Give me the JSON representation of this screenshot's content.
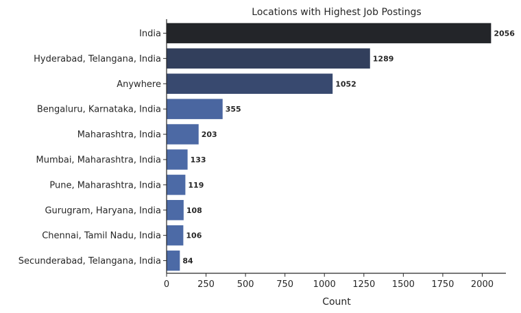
{
  "chart_data": {
    "type": "bar",
    "orientation": "horizontal",
    "title": "Locations with Highest Job Postings",
    "xlabel": "Count",
    "ylabel": "",
    "categories": [
      "India",
      "Hyderabad, Telangana, India",
      "Anywhere",
      "Bengaluru, Karnataka, India",
      "Maharashtra, India",
      "Mumbai, Maharashtra, India",
      "Pune, Maharashtra, India",
      "Gurugram, Haryana, India",
      "Chennai, Tamil Nadu, India",
      "Secunderabad, Telangana, India"
    ],
    "values": [
      2056,
      1289,
      1052,
      355,
      203,
      133,
      119,
      108,
      106,
      84
    ],
    "bar_colors": [
      "#232529",
      "#323f5c",
      "#38496f",
      "#4a66a0",
      "#4c69a4",
      "#4c6aa6",
      "#4c6aa6",
      "#4c6aa6",
      "#4c6aa6",
      "#4c6aa6"
    ],
    "xlim": [
      0,
      2150
    ],
    "xticks": [
      0,
      250,
      500,
      750,
      1000,
      1250,
      1500,
      1750,
      2000
    ],
    "grid": false,
    "legend": "none"
  }
}
